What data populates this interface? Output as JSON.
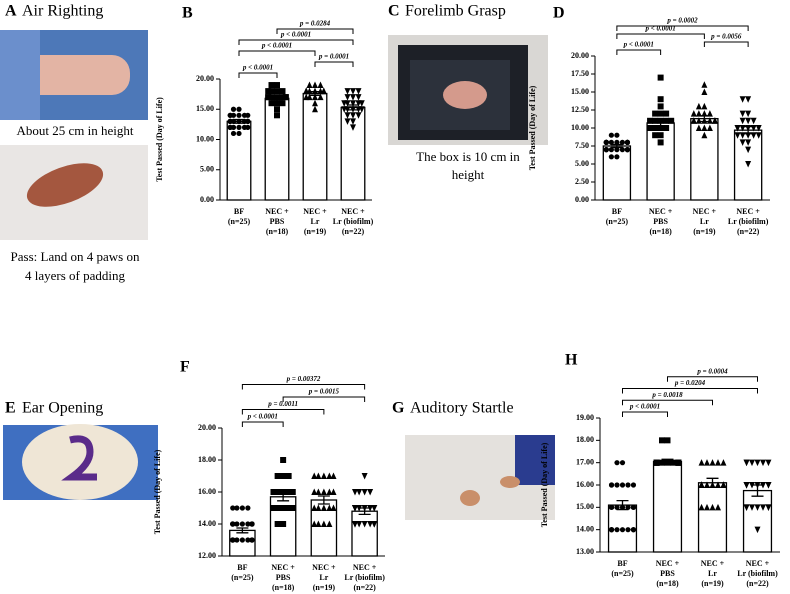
{
  "panels": [
    {
      "letter": "A",
      "title": "Air Righting",
      "captions": [
        "About 25 cm in height",
        "Pass: Land on 4 paws on",
        "4 layers of padding"
      ]
    },
    {
      "letter": "C",
      "title": "Forelimb Grasp",
      "captions": [
        "The box is 10 cm in",
        "height"
      ]
    },
    {
      "letter": "E",
      "title": "Ear Opening",
      "captions": []
    },
    {
      "letter": "G",
      "title": "Auditory Startle",
      "captions": []
    }
  ],
  "chart_data": [
    {
      "type": "bar",
      "letter": "B",
      "ylabel": "Test Passed (Day of Life)",
      "categories": [
        [
          "BF",
          "(n=25)"
        ],
        [
          "NEC +",
          "PBS",
          "(n=18)"
        ],
        [
          "NEC +",
          "Lr",
          "(n=19)"
        ],
        [
          "NEC +",
          "Lr (biofilm)",
          "(n=22)"
        ]
      ],
      "values": [
        13,
        16.8,
        17.6,
        15.3
      ],
      "errors": [
        0.3,
        0.4,
        0.3,
        0.4
      ],
      "points": [
        [
          11,
          11,
          12,
          12,
          12,
          12,
          12,
          13,
          13,
          13,
          13,
          13,
          13,
          13,
          13,
          14,
          14,
          14,
          14,
          14,
          14,
          15,
          15,
          12,
          13
        ],
        [
          14,
          15,
          16,
          16,
          16,
          17,
          17,
          17,
          17,
          17,
          17,
          17,
          18,
          18,
          18,
          18,
          19,
          19
        ],
        [
          15,
          16,
          17,
          17,
          17,
          17,
          18,
          18,
          18,
          18,
          18,
          18,
          18,
          18,
          18,
          18,
          19,
          19,
          19
        ],
        [
          12,
          13,
          13,
          14,
          14,
          14,
          15,
          15,
          15,
          15,
          15,
          16,
          16,
          16,
          16,
          16,
          17,
          17,
          17,
          18,
          18,
          18
        ]
      ],
      "ylim": [
        0,
        20
      ],
      "yticks": [
        {
          "value": 0,
          "label": "0.00"
        },
        {
          "value": 5,
          "label": "5.00"
        },
        {
          "value": 10,
          "label": "10.00"
        },
        {
          "value": 15,
          "label": "15.00"
        },
        {
          "value": 20,
          "label": "20.00"
        }
      ],
      "comparisons": [
        {
          "between": [
            0,
            1
          ],
          "label": "p < 0.0001"
        },
        {
          "between": [
            2,
            3
          ],
          "label": "p = 0.0001"
        },
        {
          "between": [
            0,
            2
          ],
          "label": "p < 0.0001"
        },
        {
          "between": [
            0,
            3
          ],
          "label": "p < 0.0001"
        },
        {
          "between": [
            1,
            3
          ],
          "label": "p = 0.0284"
        }
      ]
    },
    {
      "type": "bar",
      "letter": "D",
      "ylabel": "Test Passed (Day of Life)",
      "categories": [
        [
          "BF",
          "(n=25)"
        ],
        [
          "NEC +",
          "PBS",
          "(n=18)"
        ],
        [
          "NEC +",
          "Lr",
          "(n=19)"
        ],
        [
          "NEC +",
          "Lr (biofilm)",
          "(n=22)"
        ]
      ],
      "values": [
        7.5,
        10.7,
        11.3,
        9.7
      ],
      "errors": [
        0.2,
        0.5,
        0.4,
        0.5
      ],
      "points": [
        [
          6,
          6,
          7,
          7,
          7,
          7,
          7,
          7,
          7,
          7,
          7,
          8,
          8,
          8,
          8,
          8,
          8,
          8,
          8,
          8,
          8,
          8,
          8,
          9,
          9
        ],
        [
          8,
          9,
          9,
          10,
          10,
          10,
          10,
          11,
          11,
          11,
          11,
          11,
          12,
          12,
          12,
          13,
          14,
          17
        ],
        [
          9,
          10,
          10,
          10,
          11,
          11,
          11,
          11,
          11,
          11,
          11,
          12,
          12,
          12,
          12,
          13,
          13,
          15,
          16
        ],
        [
          5,
          7,
          8,
          8,
          9,
          9,
          9,
          9,
          9,
          10,
          10,
          10,
          10,
          10,
          10,
          11,
          11,
          11,
          12,
          12,
          14,
          14
        ]
      ],
      "ylim": [
        0,
        20
      ],
      "yticks": [
        {
          "value": 0,
          "label": "0.00"
        },
        {
          "value": 2.5,
          "label": "2.50"
        },
        {
          "value": 5,
          "label": "5.00"
        },
        {
          "value": 7.5,
          "label": "7.50"
        },
        {
          "value": 10,
          "label": "10.00"
        },
        {
          "value": 12.5,
          "label": "12.50"
        },
        {
          "value": 15,
          "label": "15.00"
        },
        {
          "value": 17.5,
          "label": "17.50"
        },
        {
          "value": 20,
          "label": "20.00"
        }
      ],
      "comparisons": [
        {
          "between": [
            0,
            1
          ],
          "label": "p < 0.0001"
        },
        {
          "between": [
            2,
            3
          ],
          "label": "p = 0.0056"
        },
        {
          "between": [
            0,
            2
          ],
          "label": "p < 0.0001"
        },
        {
          "between": [
            0,
            3
          ],
          "label": "p = 0.0002"
        }
      ]
    },
    {
      "type": "bar",
      "letter": "F",
      "ylabel": "Test Passed (Day of Life)",
      "categories": [
        [
          "BF",
          "(n=25)"
        ],
        [
          "NEC +",
          "PBS",
          "(n=18)"
        ],
        [
          "NEC +",
          "Lr",
          "(n=19)"
        ],
        [
          "NEC +",
          "Lr (biofilm)",
          "(n=22)"
        ]
      ],
      "values": [
        13.6,
        15.7,
        15.5,
        14.8
      ],
      "errors": [
        0.15,
        0.25,
        0.25,
        0.2
      ],
      "points": [
        [
          13,
          13,
          13,
          13,
          13,
          13,
          13,
          13,
          13,
          14,
          14,
          14,
          14,
          14,
          14,
          14,
          14,
          14,
          14,
          15,
          15,
          15,
          15,
          13,
          14
        ],
        [
          14,
          14,
          15,
          15,
          15,
          15,
          15,
          15,
          16,
          16,
          16,
          16,
          16,
          16,
          17,
          17,
          17,
          18
        ],
        [
          14,
          14,
          14,
          14,
          15,
          15,
          15,
          15,
          15,
          16,
          16,
          16,
          16,
          16,
          17,
          17,
          17,
          17,
          17
        ],
        [
          14,
          14,
          14,
          14,
          14,
          14,
          14,
          14,
          14,
          15,
          15,
          15,
          15,
          15,
          15,
          15,
          15,
          16,
          16,
          16,
          16,
          17
        ]
      ],
      "ylim": [
        12,
        20
      ],
      "yticks": [
        {
          "value": 12,
          "label": "12.00"
        },
        {
          "value": 14,
          "label": "14.00"
        },
        {
          "value": 16,
          "label": "16.00"
        },
        {
          "value": 18,
          "label": "18.00"
        },
        {
          "value": 20,
          "label": "20.00"
        }
      ],
      "comparisons": [
        {
          "between": [
            0,
            1
          ],
          "label": "p < 0.0001"
        },
        {
          "between": [
            0,
            2
          ],
          "label": "p = 0.0011"
        },
        {
          "between": [
            1,
            3
          ],
          "label": "p = 0.0015"
        },
        {
          "between": [
            0,
            3
          ],
          "label": "p = 0.00372"
        }
      ]
    },
    {
      "type": "bar",
      "letter": "H",
      "ylabel": "Test Passed (Day of Life)",
      "categories": [
        [
          "BF",
          "(n=25)"
        ],
        [
          "NEC +",
          "PBS",
          "(n=18)"
        ],
        [
          "NEC +",
          "Lr",
          "(n=19)"
        ],
        [
          "NEC +",
          "Lr (biofilm)",
          "(n=22)"
        ]
      ],
      "values": [
        15.1,
        17.05,
        16.1,
        15.75
      ],
      "errors": [
        0.2,
        0.1,
        0.2,
        0.25
      ],
      "points": [
        [
          14,
          14,
          14,
          14,
          14,
          14,
          14,
          14,
          14,
          15,
          15,
          15,
          15,
          15,
          15,
          15,
          16,
          16,
          16,
          16,
          16,
          16,
          17,
          17,
          14
        ],
        [
          17,
          17,
          17,
          17,
          17,
          17,
          17,
          17,
          17,
          17,
          17,
          17,
          17,
          17,
          17,
          17,
          18,
          18
        ],
        [
          15,
          15,
          15,
          15,
          16,
          16,
          16,
          16,
          16,
          16,
          16,
          16,
          16,
          16,
          17,
          17,
          17,
          17,
          17
        ],
        [
          14,
          15,
          15,
          15,
          15,
          15,
          15,
          15,
          16,
          16,
          16,
          16,
          16,
          16,
          16,
          16,
          17,
          17,
          17,
          17,
          17,
          17
        ]
      ],
      "ylim": [
        13,
        19
      ],
      "yticks": [
        {
          "value": 13,
          "label": "13.00"
        },
        {
          "value": 14,
          "label": "14.00"
        },
        {
          "value": 15,
          "label": "15.00"
        },
        {
          "value": 16,
          "label": "16.00"
        },
        {
          "value": 17,
          "label": "17.00"
        },
        {
          "value": 18,
          "label": "18.00"
        },
        {
          "value": 19,
          "label": "19.00"
        }
      ],
      "comparisons": [
        {
          "between": [
            0,
            1
          ],
          "label": "p < 0.0001"
        },
        {
          "between": [
            0,
            2
          ],
          "label": "p = 0.0018"
        },
        {
          "between": [
            0,
            3
          ],
          "label": "p = 0.0204"
        },
        {
          "between": [
            1,
            3
          ],
          "label": "p = 0.0004"
        }
      ]
    }
  ]
}
